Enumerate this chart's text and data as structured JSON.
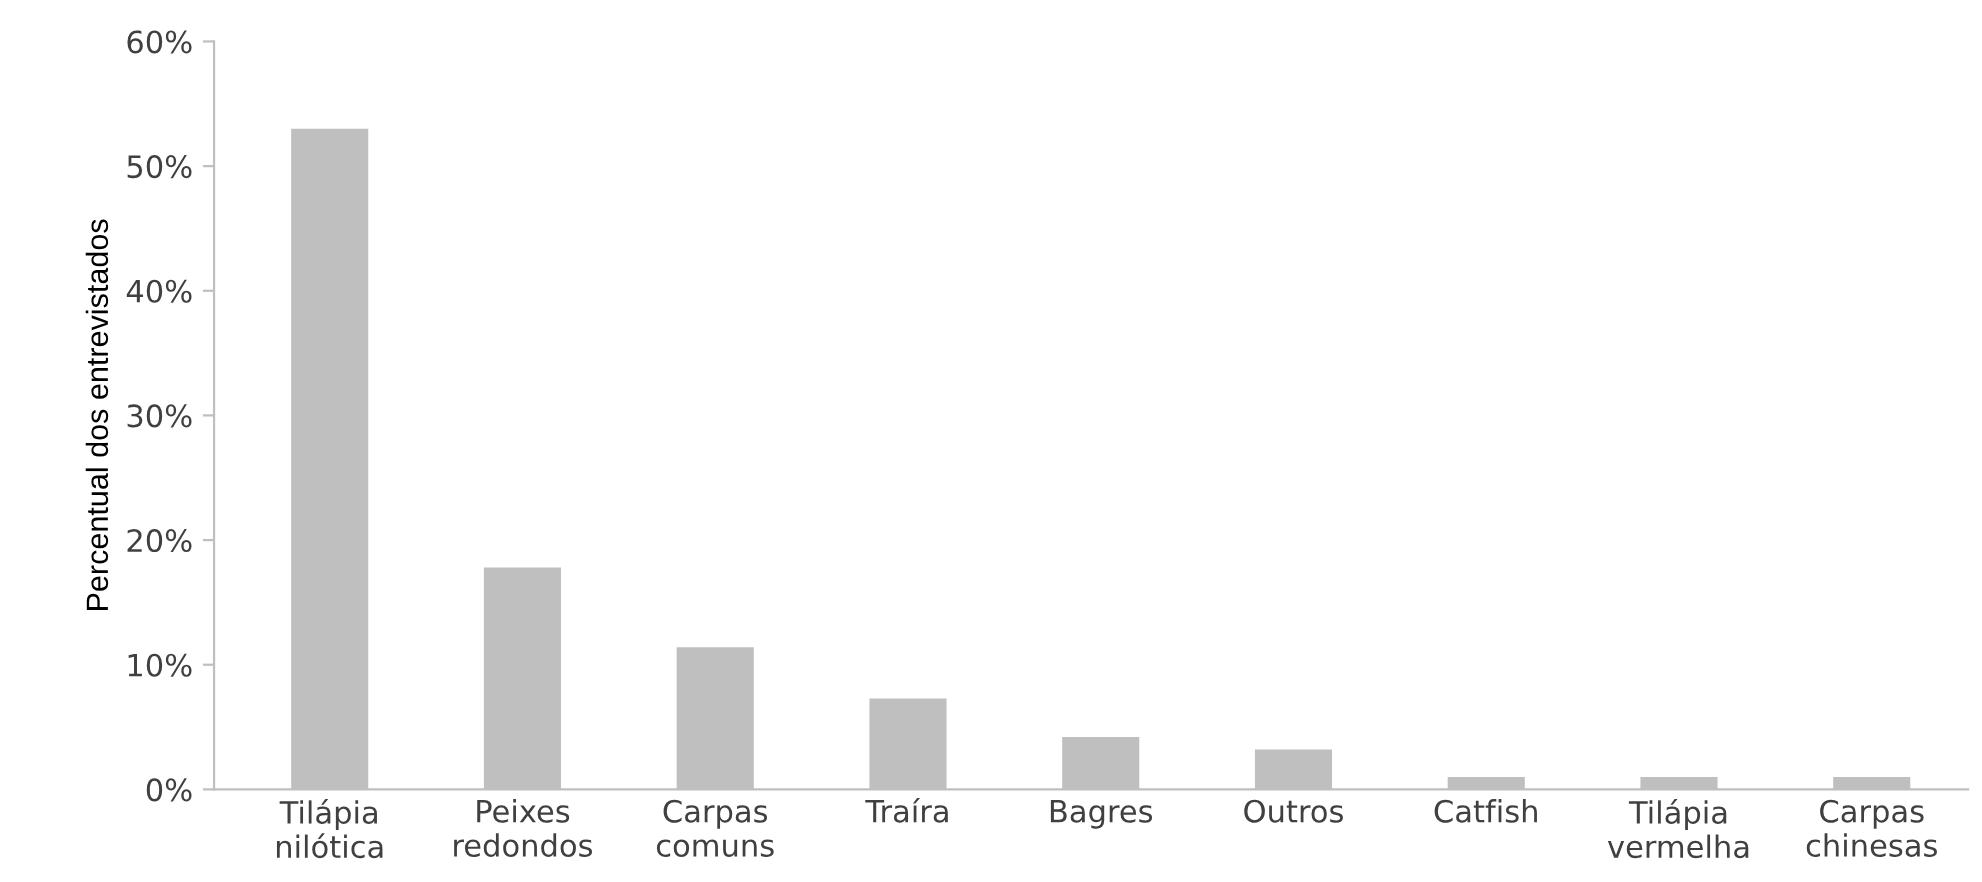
{
  "chart_data": {
    "type": "bar",
    "ylabel": "Percentual dos entrevistados",
    "categories": [
      "Tilápia\nnilótica",
      "Peixes\nredondos",
      "Carpas\ncomuns",
      "Traíra",
      "Bagres",
      "Outros",
      "Catfish",
      "Tilápia\nvermelha",
      "Carpas\nchinesas"
    ],
    "values": [
      53.0,
      17.8,
      11.4,
      7.3,
      4.2,
      3.2,
      1.0,
      1.0,
      1.0
    ],
    "color": "#bfbfbf",
    "ylim": [
      0,
      60
    ],
    "yticks": [
      {
        "value": 0,
        "label": "0%"
      },
      {
        "value": 10,
        "label": "10%"
      },
      {
        "value": 20,
        "label": "20%"
      },
      {
        "value": 30,
        "label": "30%"
      },
      {
        "value": 40,
        "label": "40%"
      },
      {
        "value": 50,
        "label": "50%"
      },
      {
        "value": 60,
        "label": "60%"
      }
    ],
    "grid": false,
    "legend": false
  }
}
